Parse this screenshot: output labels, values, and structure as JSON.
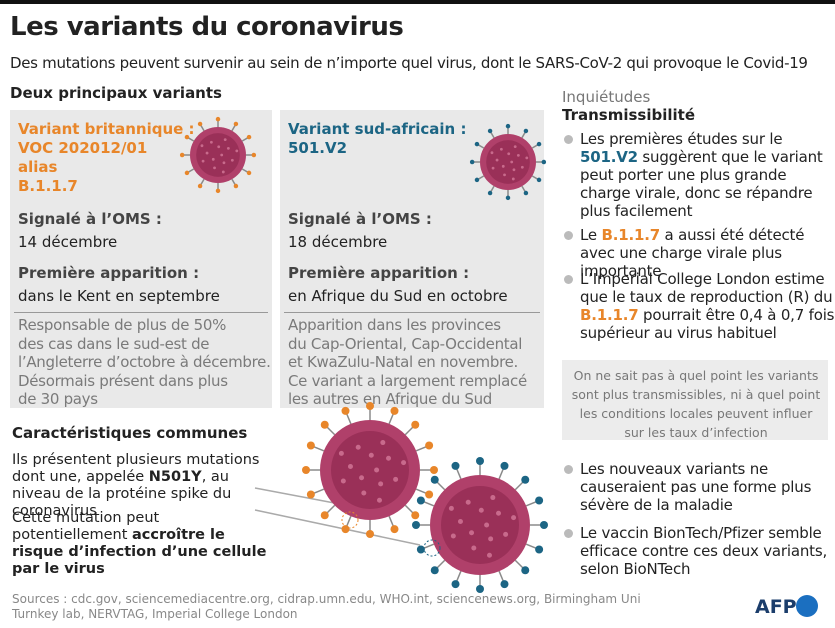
{
  "header": {
    "title": "Les variants du coronavirus",
    "subtitle": "Des mutations peuvent survenir au sein de n’importe quel virus, dont le SARS-CoV-2 qui provoque le Covid-19"
  },
  "variants_heading": "Deux principaux variants",
  "variants": [
    {
      "name": [
        "Variant britannique :",
        "VOC 202012/01",
        "alias",
        "B.1.1.7"
      ],
      "color": "#e8862a",
      "reported_label": "Signalé à l’OMS :",
      "reported_date": "14 décembre",
      "first_label": "Première apparition :",
      "first_place": "dans le Kent en septembre",
      "description": [
        "Responsable de plus de 50%",
        "des cas dans le sud-est de",
        "l’Angleterre d’octobre à décembre.",
        "Désormais présent dans plus",
        "de 30 pays"
      ]
    },
    {
      "name": [
        "Variant sud-africain :",
        "501.V2"
      ],
      "color": "#1c6584",
      "reported_label": "Signalé à l’OMS :",
      "reported_date": "18 décembre",
      "first_label": "Première apparition :",
      "first_place": "en Afrique du Sud en octobre",
      "description": [
        "Apparition dans les provinces",
        "du Cap-Oriental, Cap-Occidental",
        "et KwaZulu-Natal en novembre.",
        "Ce variant a largement remplacé",
        "les autres en Afrique du Sud"
      ]
    }
  ],
  "common": {
    "heading": "Caractéristiques communes",
    "paragraphs": [
      [
        {
          "text": "Ils présentent plusieurs mutations dont une, appelée "
        },
        {
          "text": "N501Y",
          "emphasis": "bold"
        },
        {
          "text": ", au niveau de la protéine spike du coronavirus"
        }
      ],
      [
        {
          "text": "Cette mutation peut potentiellement "
        },
        {
          "text": "accroître le risque d’infection d’une cellule par le virus",
          "emphasis": "bold"
        }
      ]
    ]
  },
  "concerns": {
    "heading": "Inquiétudes",
    "subheading": "Transmissibilité",
    "bullets": [
      [
        {
          "text": "Les premières études sur le "
        },
        {
          "text": "501.V2",
          "emphasis": "blue"
        },
        {
          "text": " suggèrent que le variant peut porter une plus grande charge virale, donc se répandre plus facilement"
        }
      ],
      [
        {
          "text": "Le "
        },
        {
          "text": "B.1.1.7",
          "emphasis": "orange"
        },
        {
          "text": " a aussi été détecté avec une charge virale plus importante"
        }
      ],
      [
        {
          "text": "L’Imperial College London estime que le taux de reproduction (R) du "
        },
        {
          "text": "B.1.1.7",
          "emphasis": "orange"
        },
        {
          "text": " pourrait être 0,4 à 0,7 fois supérieur au virus habituel"
        }
      ]
    ],
    "note": "On ne sait pas à quel point les variants sont plus transmissibles, ni à quel point les conditions locales peuvent influer sur les taux d’infection",
    "more_bullets": [
      [
        {
          "text": "Les nouveaux variants ne causeraient pas une forme plus sévère de la maladie"
        }
      ],
      [
        {
          "text": "Le vaccin BionTech/Pfizer semble efficace contre ces deux variants, selon BioNTech"
        }
      ]
    ]
  },
  "footer": {
    "sources": "Sources : cdc.gov, sciencemediacentre.org, cidrap.umn.edu, WHO.int, sciencenews.org, Birmingham Uni Turnkey lab, NERVTAG, Imperial College London",
    "logo": "AFP"
  }
}
